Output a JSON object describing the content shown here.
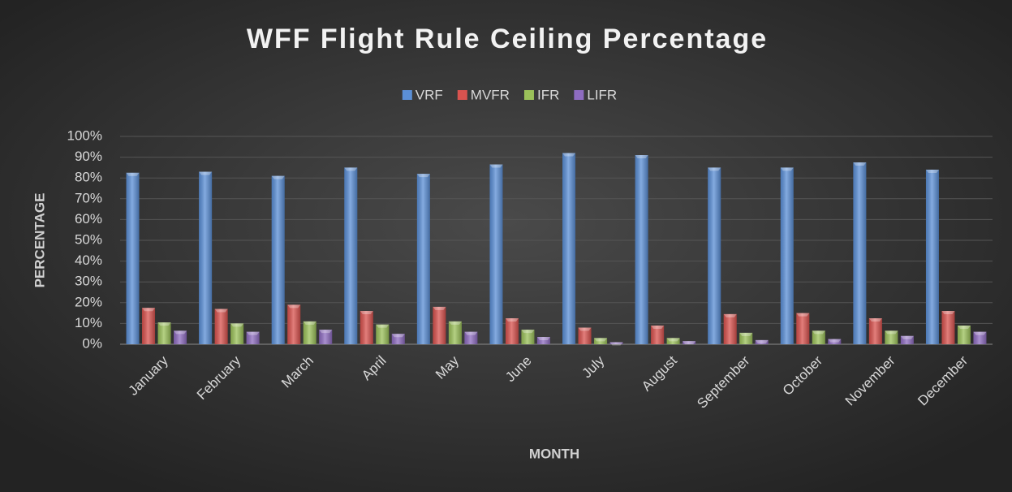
{
  "chart_data": {
    "type": "bar",
    "title": "WFF Flight Rule Ceiling Percentage",
    "xlabel": "MONTH",
    "ylabel": "PERCENTAGE",
    "categories": [
      "January",
      "February",
      "March",
      "April",
      "May",
      "June",
      "July",
      "August",
      "September",
      "October",
      "November",
      "December"
    ],
    "series": [
      {
        "name": "VRF",
        "color": "#5b8fd6",
        "values": [
          82.5,
          83,
          81,
          85,
          82,
          86.5,
          92,
          91,
          85,
          85,
          87.5,
          84
        ]
      },
      {
        "name": "MVFR",
        "color": "#d9534f",
        "values": [
          17.5,
          17,
          19,
          16,
          18,
          12.5,
          8,
          9,
          14.5,
          15,
          12.5,
          16
        ]
      },
      {
        "name": "IFR",
        "color": "#9bc15a",
        "values": [
          10.5,
          10,
          11,
          9.5,
          11,
          7,
          3,
          3,
          5.5,
          6.5,
          6.5,
          9
        ]
      },
      {
        "name": "LIFR",
        "color": "#8e6cc0",
        "values": [
          6.5,
          6,
          7,
          5,
          6,
          3.5,
          1,
          1.5,
          2,
          2.5,
          4,
          6
        ]
      }
    ],
    "ylim": [
      0,
      100
    ],
    "yticks": [
      {
        "value": 0,
        "label": "0%"
      },
      {
        "value": 10,
        "label": "10%"
      },
      {
        "value": 20,
        "label": "20%"
      },
      {
        "value": 30,
        "label": "30%"
      },
      {
        "value": 40,
        "label": "40%"
      },
      {
        "value": 50,
        "label": "50%"
      },
      {
        "value": 60,
        "label": "60%"
      },
      {
        "value": 70,
        "label": "70%"
      },
      {
        "value": 80,
        "label": "80%"
      },
      {
        "value": 90,
        "label": "90%"
      },
      {
        "value": 100,
        "label": "100%"
      }
    ],
    "grid": true,
    "legend": "top"
  }
}
